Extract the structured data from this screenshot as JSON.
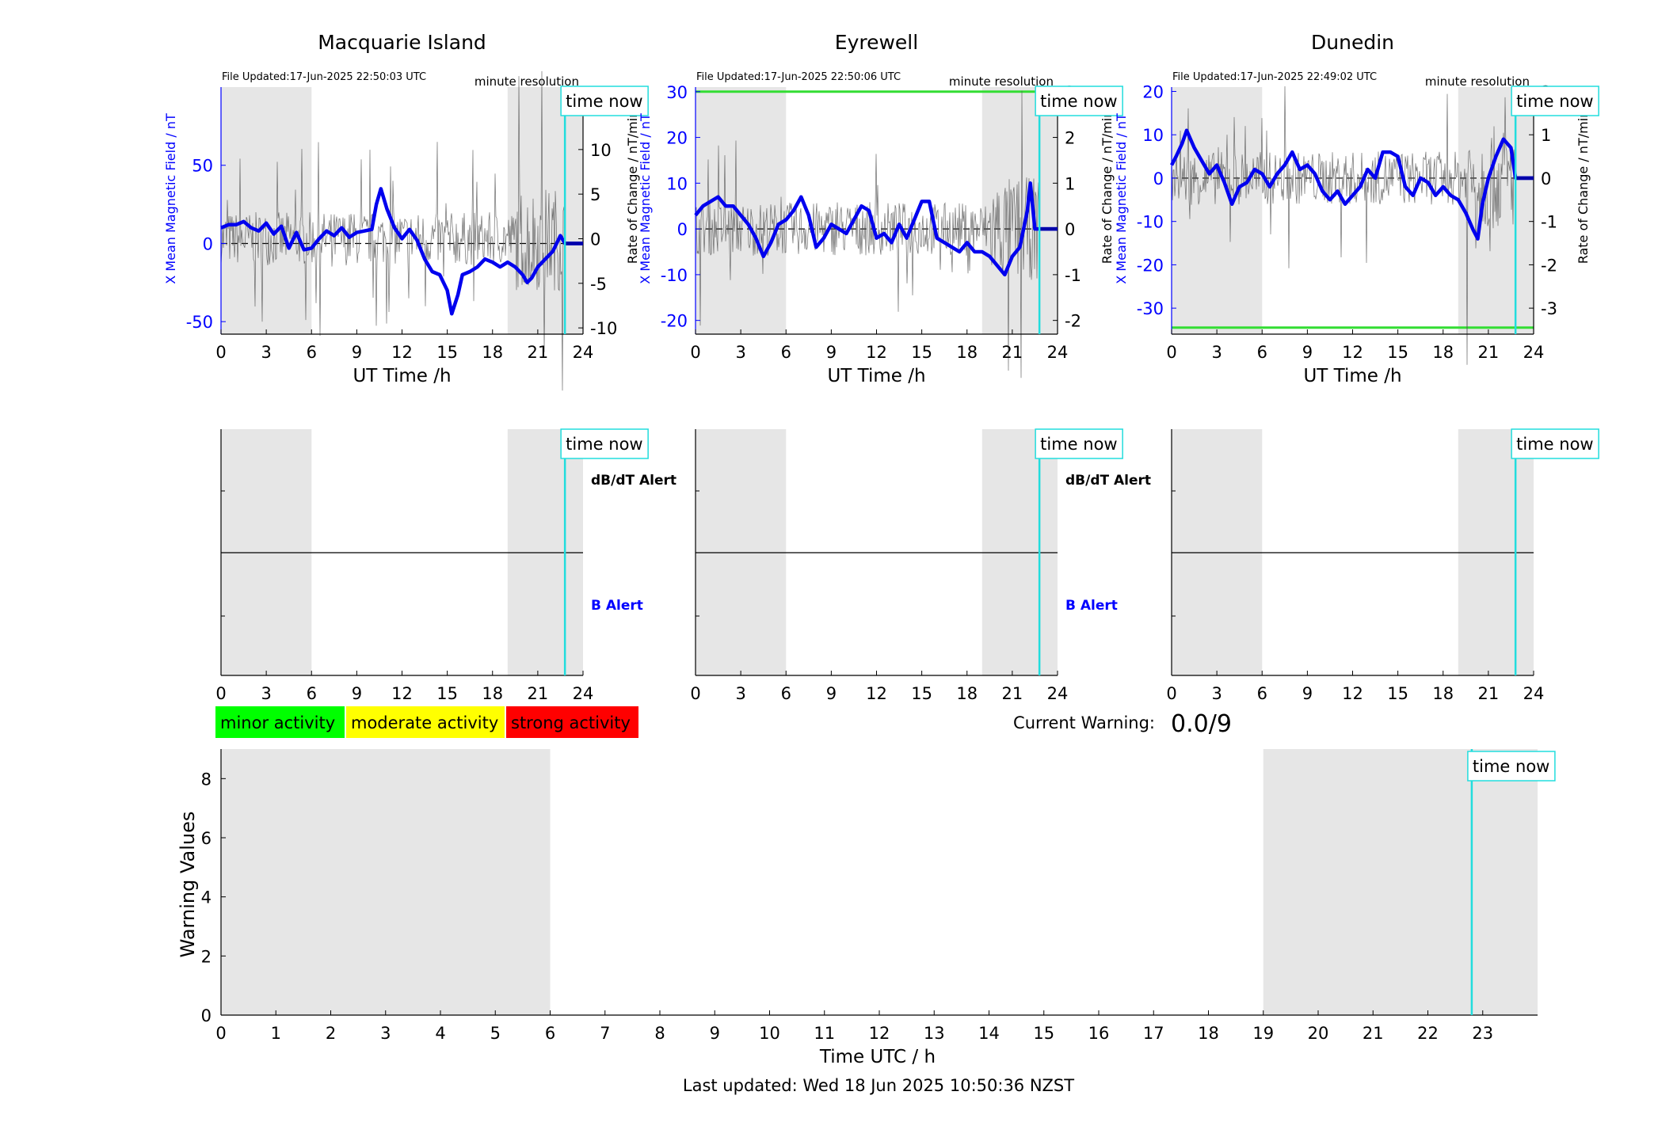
{
  "figure": {
    "footer": "Last updated: Wed 18 Jun 2025 10:50:36 NZST",
    "time_now_label": "time now",
    "resolution_label": "minute resolution",
    "x_axis_label_top": "UT Time /h",
    "y_left_label": "X Mean Magnetic Field / nT",
    "y_right_label": "Rate of Change / nT/min",
    "alert_labels": {
      "dbdt": "dB/dT Alert",
      "b": "B Alert"
    },
    "legend": [
      {
        "label": "minor activity",
        "color": "#00ff00"
      },
      {
        "label": "moderate activity",
        "color": "#ffff00"
      },
      {
        "label": "strong activity",
        "color": "#ff0000"
      }
    ],
    "current_warning": {
      "label": "Current Warning:",
      "value": "0.0/9"
    },
    "colors": {
      "field_line": "#0000ee",
      "rate_line": "#555555",
      "threshold_line": "#33dd33",
      "time_now_line": "#22dddd",
      "shade": "#e6e6e6",
      "axis_blue": "#0000ff"
    }
  },
  "chart_data": [
    {
      "type": "line",
      "title": "Macquarie Island",
      "file_updated": "File Updated:17-Jun-2025 22:50:03 UTC",
      "xlabel": "UT Time /h",
      "ylabel": "X Mean Magnetic Field / nT",
      "ylabel_right": "Rate of Change / nT/min",
      "xlim": [
        0,
        24
      ],
      "ylim": [
        -58,
        100
      ],
      "ylim_right": [
        -10.7,
        17
      ],
      "xticks": [
        0,
        3,
        6,
        9,
        12,
        15,
        18,
        21,
        24
      ],
      "yticks": [
        -50,
        0,
        50
      ],
      "yticks_right": [
        -10,
        -5,
        0,
        5,
        10
      ],
      "shaded": [
        [
          0,
          6
        ],
        [
          19,
          24
        ]
      ],
      "time_now": 22.8,
      "threshold": null,
      "series": [
        {
          "x": [
            0,
            0.5,
            1,
            1.5,
            2,
            2.5,
            3,
            3.5,
            4,
            4.5,
            5,
            5.5,
            6,
            6.5,
            7,
            7.5,
            8,
            8.5,
            9,
            9.5,
            10,
            10.3,
            10.6,
            11,
            11.5,
            12,
            12.5,
            13,
            13.5,
            14,
            14.5,
            15,
            15.3,
            15.7,
            16,
            16.5,
            17,
            17.5,
            18,
            18.5,
            19,
            19.5,
            20,
            20.3,
            20.6,
            21,
            21.5,
            22,
            22.5,
            22.8,
            23,
            24
          ],
          "values": [
            10,
            12,
            12,
            14,
            10,
            8,
            13,
            6,
            11,
            -3,
            7,
            -4,
            -3,
            3,
            8,
            5,
            10,
            4,
            7,
            8,
            9,
            25,
            35,
            22,
            10,
            3,
            9,
            2,
            -10,
            -18,
            -20,
            -30,
            -45,
            -33,
            -20,
            -18,
            -15,
            -10,
            -12,
            -15,
            -12,
            -15,
            -20,
            -25,
            -22,
            -15,
            -10,
            -5,
            5,
            0,
            0,
            0
          ]
        }
      ]
    },
    {
      "type": "line",
      "title": "Eyrewell",
      "file_updated": "File Updated:17-Jun-2025 22:50:06 UTC",
      "xlabel": "UT Time /h",
      "ylabel": "X Mean Magnetic Field / nT",
      "ylabel_right": "Rate of Change / nT/min",
      "xlim": [
        0,
        24
      ],
      "ylim": [
        -23,
        31
      ],
      "ylim_right": [
        -2.3,
        3.1
      ],
      "xticks": [
        0,
        3,
        6,
        9,
        12,
        15,
        18,
        21,
        24
      ],
      "yticks": [
        -20,
        -10,
        0,
        10,
        20,
        30
      ],
      "yticks_right": [
        -2,
        -1,
        0,
        1,
        2,
        3
      ],
      "shaded": [
        [
          0,
          6
        ],
        [
          19,
          24
        ]
      ],
      "time_now": 22.8,
      "threshold": 30,
      "series": [
        {
          "x": [
            0,
            0.5,
            1,
            1.5,
            2,
            2.5,
            3,
            3.5,
            4,
            4.5,
            5,
            5.5,
            6,
            6.5,
            7,
            7.5,
            8,
            8.5,
            9,
            9.5,
            10,
            10.5,
            11,
            11.5,
            12,
            12.5,
            13,
            13.5,
            14,
            14.5,
            15,
            15.5,
            16,
            16.5,
            17,
            17.5,
            18,
            18.5,
            19,
            19.5,
            20,
            20.5,
            21,
            21.5,
            22,
            22.2,
            22.5,
            23,
            24
          ],
          "values": [
            3,
            5,
            6,
            7,
            5,
            5,
            3,
            1,
            -2,
            -6,
            -3,
            1,
            2,
            4,
            7,
            3,
            -4,
            -2,
            1,
            0,
            -1,
            2,
            5,
            4,
            -2,
            -1,
            -3,
            1,
            -2,
            2,
            6,
            6,
            -2,
            -3,
            -4,
            -5,
            -3,
            -5,
            -5,
            -6,
            -8,
            -10,
            -6,
            -4,
            4,
            10,
            0,
            0,
            0
          ]
        }
      ]
    },
    {
      "type": "line",
      "title": "Dunedin",
      "file_updated": "File Updated:17-Jun-2025 22:49:02 UTC",
      "xlabel": "UT Time /h",
      "ylabel": "X Mean Magnetic Field / nT",
      "ylabel_right": "Rate of Change / nT/min",
      "xlim": [
        0,
        24
      ],
      "ylim": [
        -36,
        21
      ],
      "ylim_right": [
        -3.6,
        2.1
      ],
      "xticks": [
        0,
        3,
        6,
        9,
        12,
        15,
        18,
        21,
        24
      ],
      "yticks": [
        -30,
        -20,
        -10,
        0,
        10,
        20
      ],
      "yticks_right": [
        -3,
        -2,
        -1,
        0,
        1,
        2
      ],
      "shaded": [
        [
          0,
          6
        ],
        [
          19,
          24
        ]
      ],
      "time_now": 22.8,
      "threshold": -34.5,
      "series": [
        {
          "x": [
            0,
            0.3,
            0.7,
            1,
            1.5,
            2,
            2.5,
            3,
            3.5,
            4,
            4.5,
            5,
            5.5,
            6,
            6.5,
            7,
            7.5,
            8,
            8.5,
            9,
            9.5,
            10,
            10.5,
            11,
            11.5,
            12,
            12.5,
            13,
            13.5,
            14,
            14.5,
            15,
            15.5,
            16,
            16.5,
            17,
            17.5,
            18,
            18.5,
            19,
            19.5,
            20,
            20.3,
            20.6,
            21,
            21.5,
            22,
            22.5,
            22.8,
            23,
            24
          ],
          "values": [
            3,
            5,
            8,
            11,
            7,
            4,
            1,
            3,
            -1,
            -6,
            -2,
            -1,
            2,
            1,
            -2,
            1,
            3,
            6,
            2,
            3,
            1,
            -3,
            -5,
            -3,
            -6,
            -4,
            -2,
            2,
            0,
            6,
            6,
            5,
            -2,
            -4,
            0,
            -1,
            -4,
            -2,
            -4,
            -5,
            -8,
            -12,
            -14,
            -6,
            0,
            5,
            9,
            7,
            0,
            0,
            0
          ]
        }
      ]
    },
    {
      "type": "bar",
      "title": "",
      "xlabel": "Time UTC / h",
      "ylabel": "Warning Values",
      "xlim": [
        0,
        24
      ],
      "ylim": [
        0,
        9
      ],
      "xticks": [
        0,
        1,
        2,
        3,
        4,
        5,
        6,
        7,
        8,
        9,
        10,
        11,
        12,
        13,
        14,
        15,
        16,
        17,
        18,
        19,
        20,
        21,
        22,
        23
      ],
      "yticks": [
        0,
        2,
        4,
        6,
        8
      ],
      "shaded": [
        [
          0,
          6
        ],
        [
          19,
          24
        ]
      ],
      "time_now": 22.8,
      "values": []
    }
  ]
}
